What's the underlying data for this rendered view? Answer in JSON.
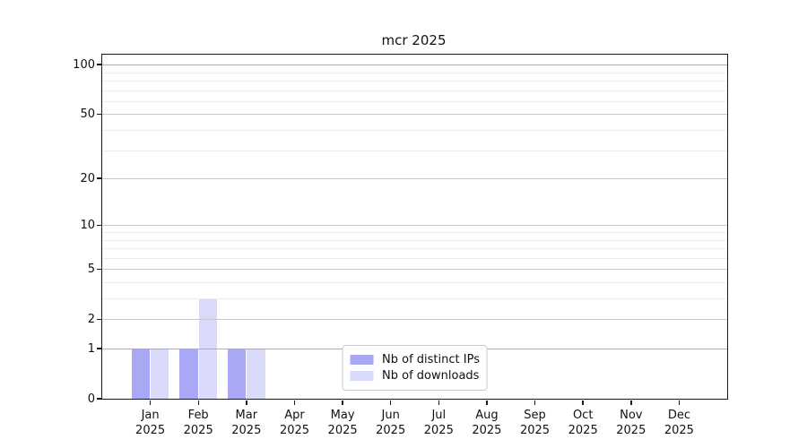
{
  "chart_data": {
    "type": "bar",
    "title": "mcr 2025",
    "categories": [
      "Jan",
      "Feb",
      "Mar",
      "Apr",
      "May",
      "Jun",
      "Jul",
      "Aug",
      "Sep",
      "Oct",
      "Nov",
      "Dec"
    ],
    "category_year": "2025",
    "series": [
      {
        "name": "Nb of distinct IPs",
        "color": "#a8a8f4",
        "values": [
          1,
          1,
          1,
          0,
          0,
          0,
          0,
          0,
          0,
          0,
          0,
          0
        ]
      },
      {
        "name": "Nb of downloads",
        "color": "#d9daf9",
        "values": [
          1,
          3,
          1,
          0,
          0,
          0,
          0,
          0,
          0,
          0,
          0,
          0
        ]
      }
    ],
    "y_ticks": [
      0,
      1,
      2,
      5,
      10,
      20,
      50,
      100
    ],
    "y_tick_labels": [
      "0",
      "1",
      "2",
      "5",
      "10",
      "20",
      "50",
      "100"
    ],
    "y_scale": "log1p",
    "ylim": [
      0,
      115
    ],
    "xlabel": "",
    "ylabel": "",
    "grid": true,
    "legend_position": "lower center"
  }
}
